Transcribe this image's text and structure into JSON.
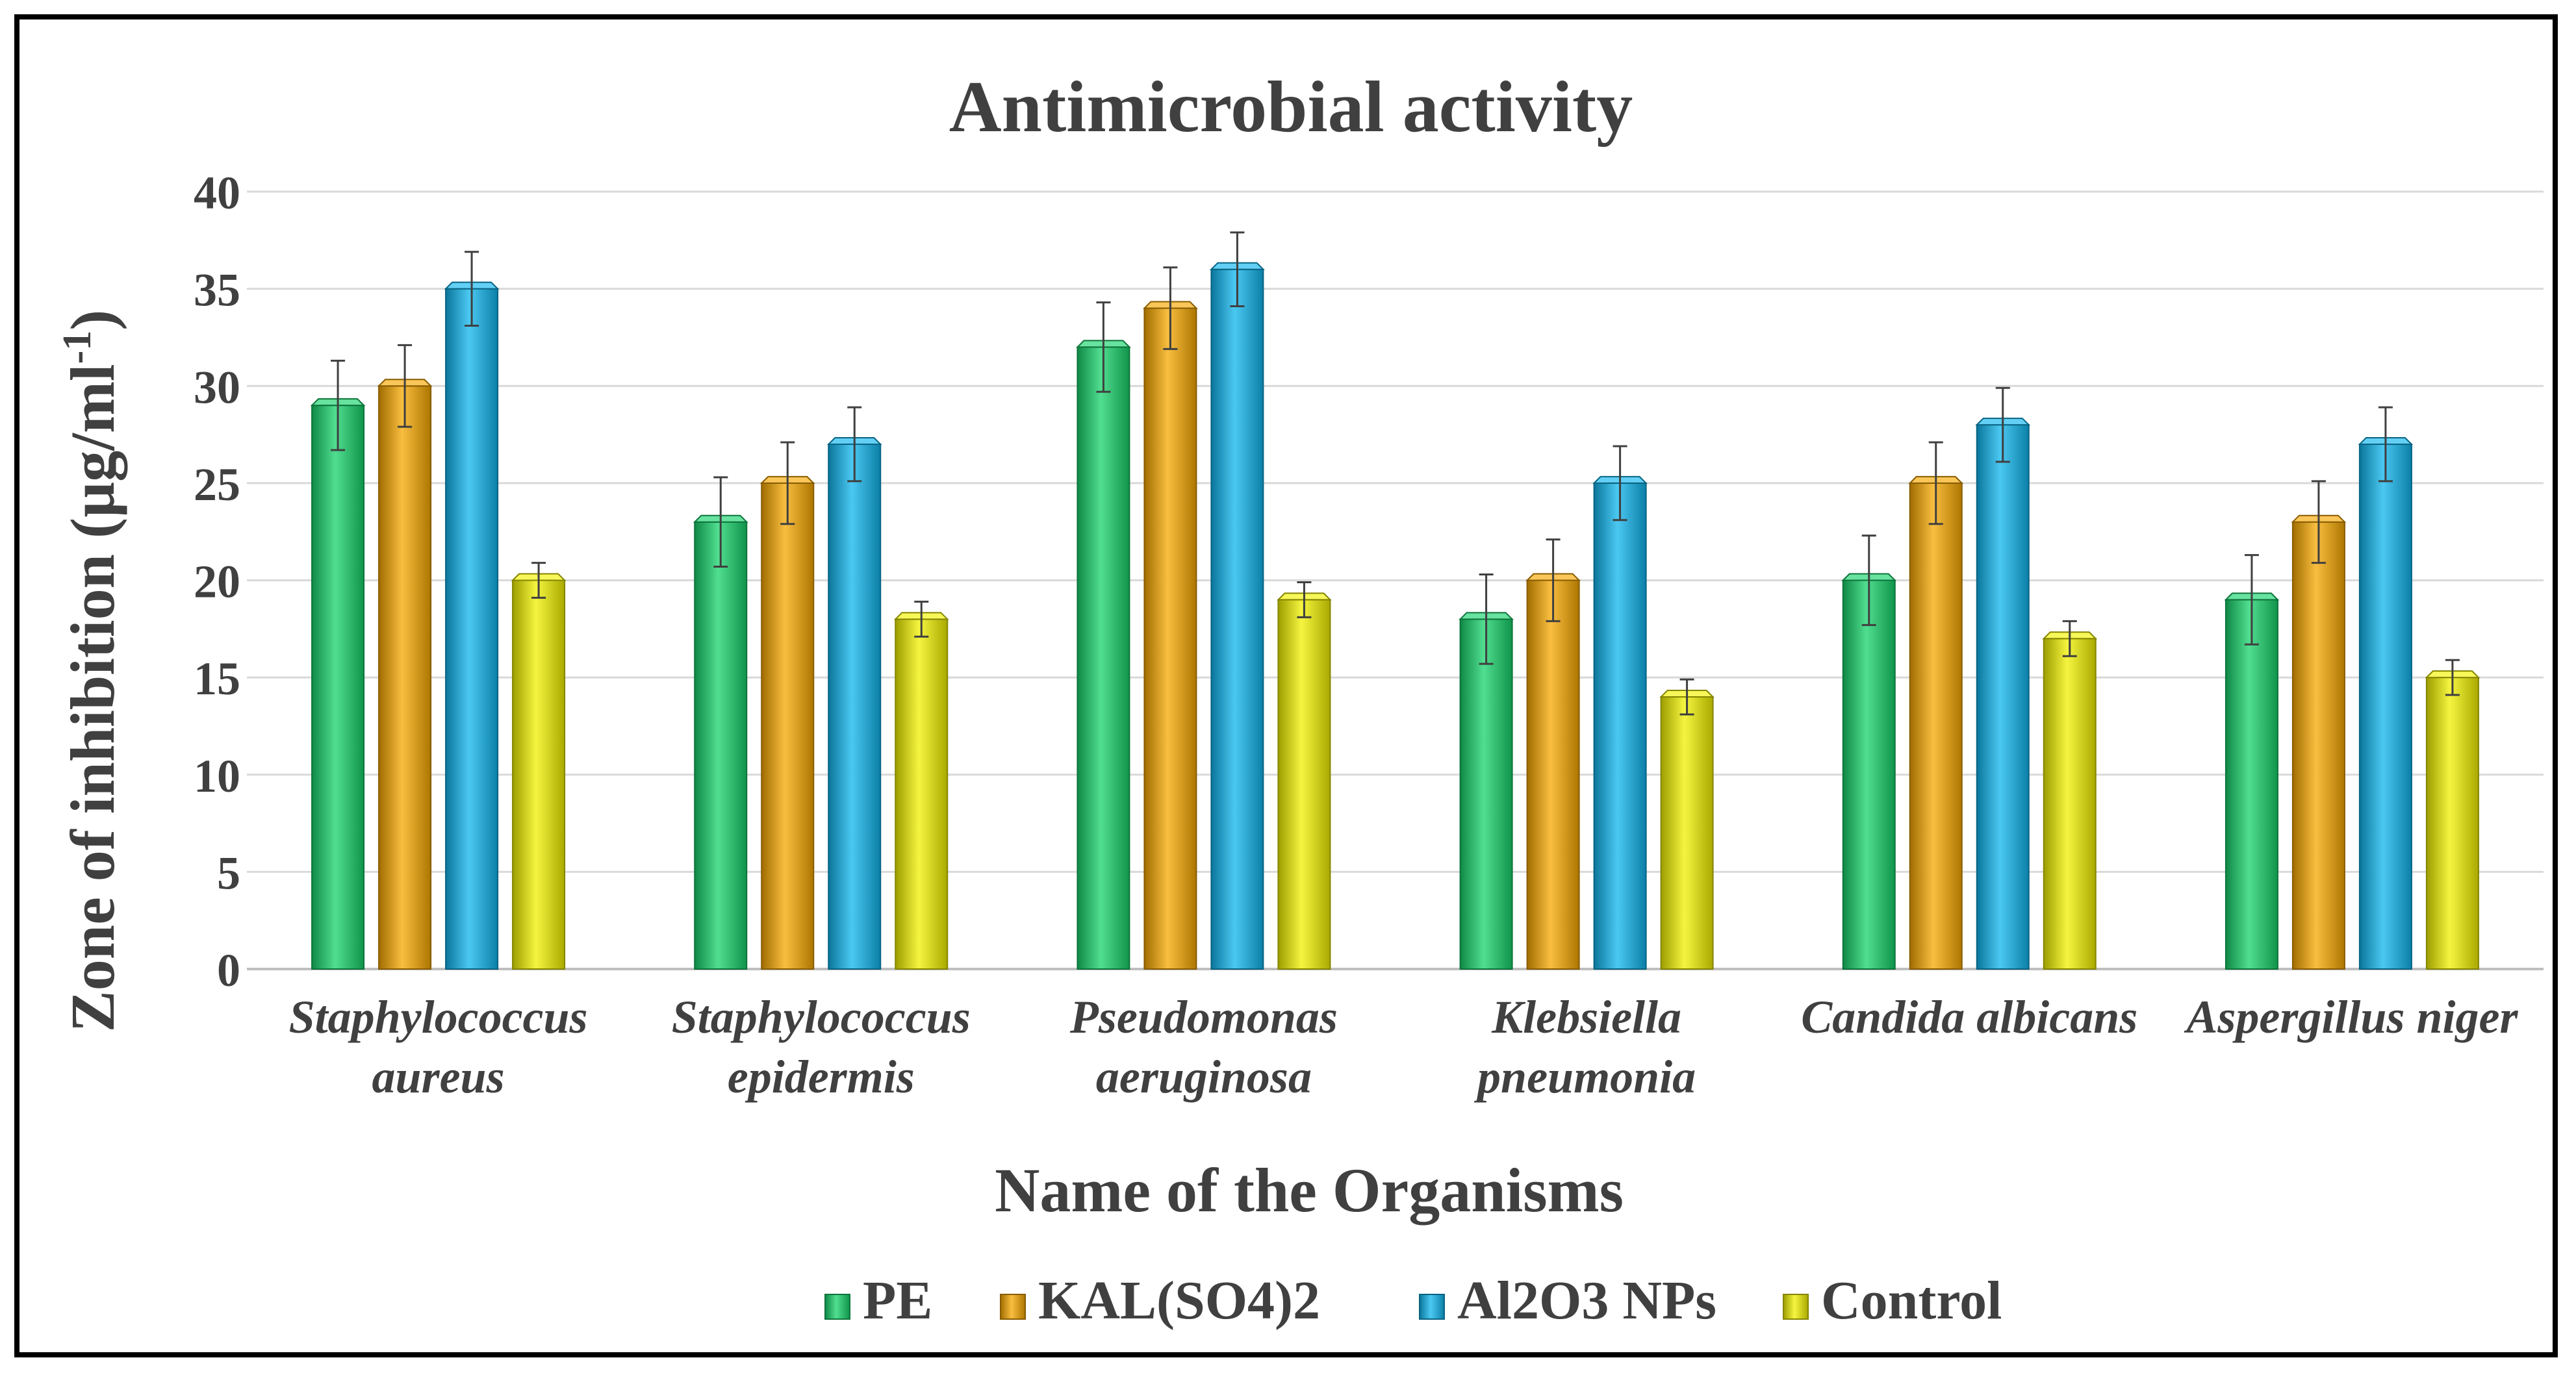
{
  "chart_data": {
    "type": "bar",
    "title": "Antimicrobial activity",
    "xlabel": "Name of the Organisms",
    "ylabel": "Zone of inhibition (µg/ml-1)",
    "ylim": [
      0,
      40
    ],
    "yticks": [
      "0",
      "5",
      "10",
      "15",
      "20",
      "25",
      "30",
      "35",
      "40"
    ],
    "grid": true,
    "legend_position": "bottom",
    "categories": [
      [
        "Staphylococcus",
        "aureus"
      ],
      [
        "Staphylococcus",
        "epidermis"
      ],
      [
        "Pseudomonas",
        "aeruginosa"
      ],
      [
        "Klebsiella",
        "pneumonia"
      ],
      [
        "Candida albicans"
      ],
      [
        "Aspergillus niger"
      ]
    ],
    "series": [
      {
        "name": "PE",
        "color": "#17d36b",
        "values": [
          29,
          23,
          32,
          18,
          20,
          19
        ],
        "errors": [
          2.3,
          2.3,
          2.3,
          2.3,
          2.3,
          2.3
        ]
      },
      {
        "name": "KAL(SO4)2",
        "color": "#f7a800",
        "values": [
          30,
          25,
          34,
          20,
          25,
          23
        ],
        "errors": [
          2.1,
          2.1,
          2.1,
          2.1,
          2.1,
          2.1
        ]
      },
      {
        "name": "Al2O3 NPs",
        "color": "#0fb5ee",
        "values": [
          35,
          27,
          36,
          25,
          28,
          27
        ],
        "errors": [
          1.9,
          1.9,
          1.9,
          1.9,
          1.9,
          1.9
        ]
      },
      {
        "name": "Control",
        "color": "#f2f200",
        "values": [
          20,
          18,
          19,
          14,
          17,
          15
        ],
        "errors": [
          0.9,
          0.9,
          0.9,
          0.9,
          0.9,
          0.9
        ]
      }
    ]
  }
}
